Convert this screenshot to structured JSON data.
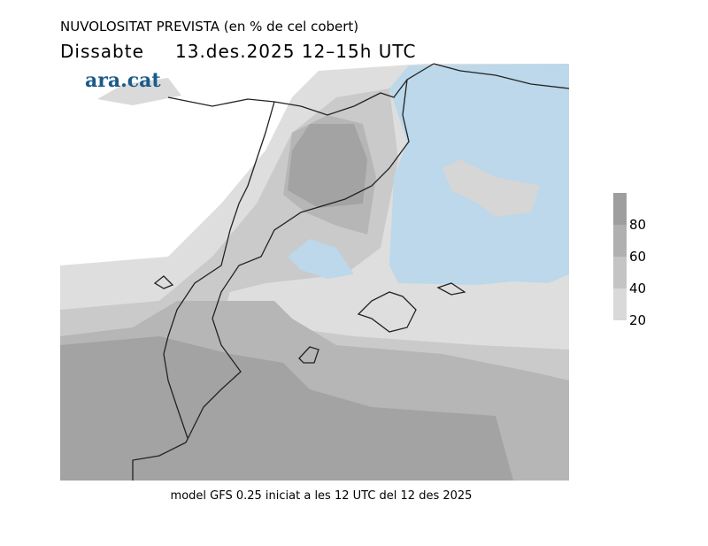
{
  "header": {
    "title": "NUVOLOSITAT PREVISTA (en % de cel cobert)",
    "day": "Dissabte",
    "date": "13.des.2025 12–15h UTC"
  },
  "logo": "ara.cat",
  "legend": {
    "range": [
      20,
      100
    ],
    "ticks": [
      20,
      40,
      60,
      80
    ],
    "colors": [
      "#d9d9d9",
      "#c4c4c4",
      "#b0b0b0",
      "#9e9e9e"
    ]
  },
  "footer": "model GFS 0.25 iniciat a les 12 UTC del 12 des 2025"
}
